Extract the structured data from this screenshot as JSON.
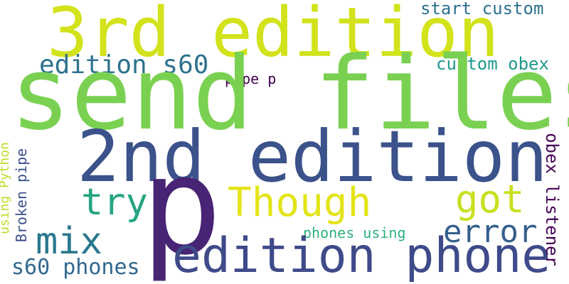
{
  "words": [
    {
      "id": "send-files",
      "text": "send files",
      "color": "#7ad151"
    },
    {
      "id": "3rd-edition",
      "text": "3rd edition",
      "color": "#d2e21b"
    },
    {
      "id": "2nd-edition",
      "text": "2nd edition",
      "color": "#3b528b"
    },
    {
      "id": "p",
      "text": "p",
      "color": "#482475"
    },
    {
      "id": "edition-phone",
      "text": "edition phone",
      "color": "#3e4a89"
    },
    {
      "id": "though",
      "text": "Though",
      "color": "#e3e418"
    },
    {
      "id": "try",
      "text": "try",
      "color": "#25a584"
    },
    {
      "id": "mix",
      "text": "mix",
      "color": "#2a788e"
    },
    {
      "id": "got",
      "text": "got",
      "color": "#c8e020"
    },
    {
      "id": "error",
      "text": "error",
      "color": "#355f8d"
    },
    {
      "id": "edition-s60",
      "text": "edition s60",
      "color": "#2c728e"
    },
    {
      "id": "s60-phones",
      "text": "s60 phones",
      "color": "#31688e"
    },
    {
      "id": "start-custom",
      "text": "start custom",
      "color": "#2d718e"
    },
    {
      "id": "custom-obex",
      "text": "custom obex",
      "color": "#1f988b"
    },
    {
      "id": "pipe-p",
      "text": "pipe p",
      "color": "#440154"
    },
    {
      "id": "phones-using",
      "text": "phones using",
      "color": "#2db27d"
    },
    {
      "id": "obex-listener",
      "text": "obex listener",
      "color": "#440154"
    },
    {
      "id": "broken-pipe",
      "text": "Broken pipe",
      "color": "#3b528b"
    },
    {
      "id": "using-python",
      "text": "using Python",
      "color": "#bddf26"
    }
  ]
}
